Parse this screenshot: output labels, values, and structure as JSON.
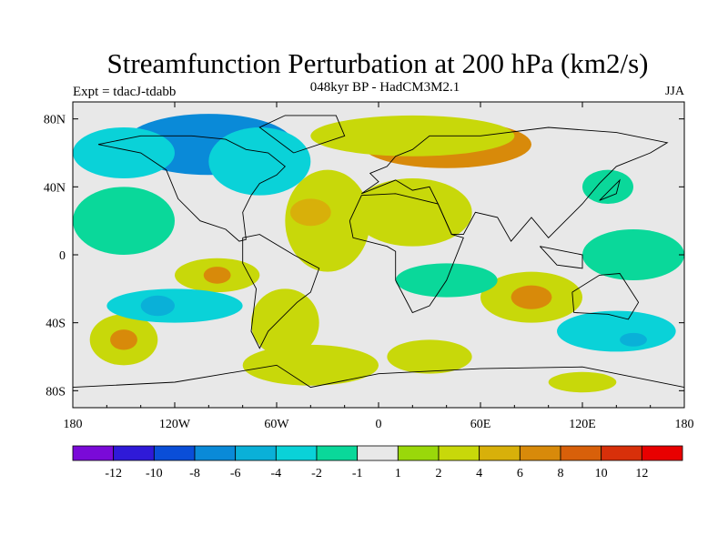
{
  "chart_data": {
    "type": "heatmap",
    "title": "Streamfunction Perturbation at 200 hPa (km2/s)",
    "subtitle_center": "048kyr BP - HadCM3M2.1",
    "subtitle_left": "Expt = tdacJ-tdabb",
    "subtitle_right": "JJA",
    "xlim": [
      -180,
      180
    ],
    "ylim": [
      -90,
      90
    ],
    "x_ticks": [
      {
        "value": -180,
        "label": "180"
      },
      {
        "value": -120,
        "label": "120W"
      },
      {
        "value": -60,
        "label": "60W"
      },
      {
        "value": 0,
        "label": "0"
      },
      {
        "value": 60,
        "label": "60E"
      },
      {
        "value": 120,
        "label": "120E"
      },
      {
        "value": 180,
        "label": "180"
      }
    ],
    "y_ticks": [
      {
        "value": 80,
        "label": "80N"
      },
      {
        "value": 40,
        "label": "40N"
      },
      {
        "value": 0,
        "label": "0"
      },
      {
        "value": -40,
        "label": "40S"
      },
      {
        "value": -80,
        "label": "80S"
      }
    ],
    "colorbar": {
      "colors": [
        "#7a0ad8",
        "#2f1ad8",
        "#0a4ed8",
        "#0a8ad8",
        "#0ab0d8",
        "#0ad2d8",
        "#0ad89a",
        "#e8e8e8",
        "#9ad80a",
        "#c8d80a",
        "#d8b00a",
        "#d88a0a",
        "#d8600a",
        "#d8300a",
        "#e80000"
      ],
      "labels": [
        "-12",
        "-10",
        "-8",
        "-6",
        "-4",
        "-2",
        "-1",
        "1",
        "2",
        "4",
        "6",
        "8",
        "10",
        "12"
      ]
    },
    "fields": [
      {
        "lon": -100,
        "lat": 65,
        "rx": 50,
        "ry": 18,
        "value": -7
      },
      {
        "lon": -70,
        "lat": 55,
        "rx": 30,
        "ry": 20,
        "value": -4
      },
      {
        "lon": -150,
        "lat": 60,
        "rx": 30,
        "ry": 15,
        "value": -3
      },
      {
        "lon": 40,
        "lat": 65,
        "rx": 50,
        "ry": 14,
        "value": 6
      },
      {
        "lon": 20,
        "lat": 70,
        "rx": 60,
        "ry": 12,
        "value": 3
      },
      {
        "lon": -30,
        "lat": 20,
        "rx": 25,
        "ry": 30,
        "value": 3
      },
      {
        "lon": -40,
        "lat": 25,
        "rx": 12,
        "ry": 8,
        "value": 5
      },
      {
        "lon": 20,
        "lat": 25,
        "rx": 35,
        "ry": 20,
        "value": 3
      },
      {
        "lon": -95,
        "lat": -12,
        "rx": 25,
        "ry": 10,
        "value": 3
      },
      {
        "lon": -95,
        "lat": -12,
        "rx": 8,
        "ry": 5,
        "value": 6
      },
      {
        "lon": -55,
        "lat": -40,
        "rx": 20,
        "ry": 20,
        "value": 3
      },
      {
        "lon": -40,
        "lat": -65,
        "rx": 40,
        "ry": 12,
        "value": 3
      },
      {
        "lon": -150,
        "lat": -50,
        "rx": 20,
        "ry": 15,
        "value": 3
      },
      {
        "lon": -150,
        "lat": -50,
        "rx": 8,
        "ry": 6,
        "value": 6
      },
      {
        "lon": 90,
        "lat": -25,
        "rx": 30,
        "ry": 15,
        "value": 3
      },
      {
        "lon": 90,
        "lat": -25,
        "rx": 12,
        "ry": 7,
        "value": 6
      },
      {
        "lon": -120,
        "lat": -30,
        "rx": 40,
        "ry": 10,
        "value": -3
      },
      {
        "lon": -130,
        "lat": -30,
        "rx": 10,
        "ry": 6,
        "value": -5
      },
      {
        "lon": 40,
        "lat": -15,
        "rx": 30,
        "ry": 10,
        "value": -2
      },
      {
        "lon": 140,
        "lat": -45,
        "rx": 35,
        "ry": 12,
        "value": -3
      },
      {
        "lon": 150,
        "lat": -50,
        "rx": 8,
        "ry": 4,
        "value": -5
      },
      {
        "lon": 150,
        "lat": 0,
        "rx": 30,
        "ry": 15,
        "value": -2
      },
      {
        "lon": 30,
        "lat": -60,
        "rx": 25,
        "ry": 10,
        "value": 3
      },
      {
        "lon": 120,
        "lat": -75,
        "rx": 20,
        "ry": 6,
        "value": 3
      },
      {
        "lon": 135,
        "lat": 40,
        "rx": 15,
        "ry": 10,
        "value": -2
      },
      {
        "lon": -150,
        "lat": 20,
        "rx": 30,
        "ry": 20,
        "value": -2
      }
    ]
  }
}
